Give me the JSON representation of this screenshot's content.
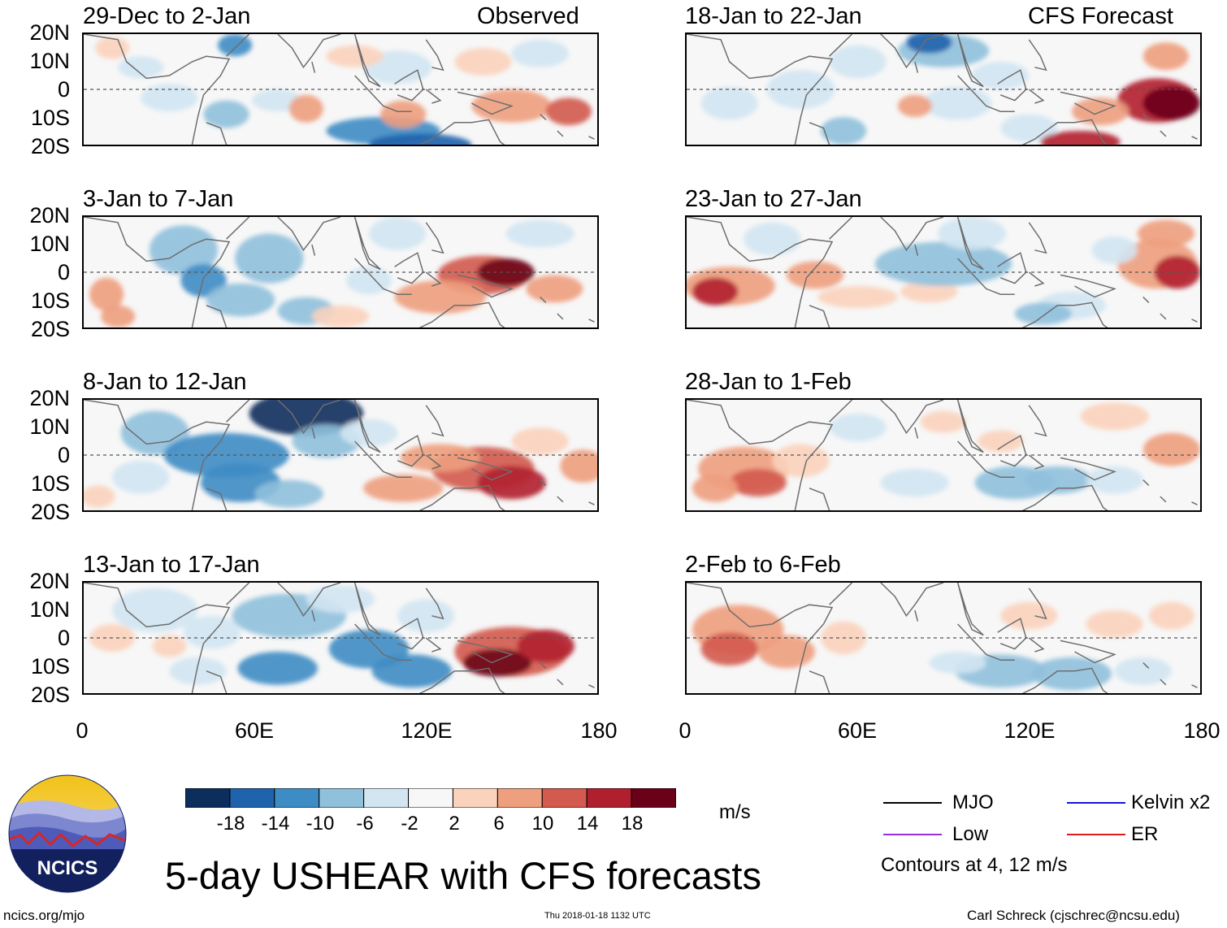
{
  "header": {
    "left_label": "Observed",
    "right_label": "CFS Forecast"
  },
  "panels_left": [
    {
      "title": "29-Dec to 2-Jan"
    },
    {
      "title": "3-Jan to 7-Jan"
    },
    {
      "title": "8-Jan to 12-Jan"
    },
    {
      "title": "13-Jan to 17-Jan"
    }
  ],
  "panels_right": [
    {
      "title": "18-Jan to 22-Jan"
    },
    {
      "title": "23-Jan to 27-Jan"
    },
    {
      "title": "28-Jan to 1-Feb"
    },
    {
      "title": "2-Feb to 6-Feb"
    }
  ],
  "axes": {
    "lat_labels": [
      "20N",
      "10N",
      "0",
      "10S",
      "20S"
    ],
    "lon_labels": [
      "0",
      "60E",
      "120E",
      "180"
    ]
  },
  "colorbar": {
    "unit": "m/s",
    "ticks": [
      "-18",
      "-14",
      "-10",
      "-6",
      "-2",
      "2",
      "6",
      "10",
      "14",
      "18"
    ],
    "colors": [
      "#0b2e5c",
      "#1f63ac",
      "#3e8cc4",
      "#8fc0dc",
      "#d2e6f2",
      "#f7f7f7",
      "#fbd3bd",
      "#ee9f7e",
      "#d35a4e",
      "#b11f2e",
      "#6b0019"
    ]
  },
  "legend": {
    "items": [
      {
        "label": "MJO",
        "color": "#000000"
      },
      {
        "label": "Kelvin x2",
        "color": "#1515d6"
      },
      {
        "label": "Low",
        "color": "#9b30e0"
      },
      {
        "label": "ER",
        "color": "#e31a1c"
      }
    ],
    "note": "Contours at 4, 12 m/s"
  },
  "logo": {
    "text": "NCICS"
  },
  "footer": {
    "title": "5-day USHEAR with CFS forecasts",
    "site": "ncics.org/mjo",
    "timestamp": "Thu 2018-01-18 1132 UTC",
    "author": "Carl Schreck (cjschrec@ncsu.edu)"
  },
  "chart_data": {
    "type": "heatmap",
    "title": "5-day USHEAR with CFS forecasts",
    "variable": "USHEAR",
    "unit": "m/s",
    "xlabel": "",
    "ylabel": "",
    "xlim": [
      0,
      180
    ],
    "ylim": [
      -20,
      20
    ],
    "x_ticks": [
      "0",
      "60E",
      "120E",
      "180"
    ],
    "y_ticks": [
      "20N",
      "10N",
      "0",
      "10S",
      "20S"
    ],
    "contour_levels": [
      4,
      12
    ],
    "observed_periods": [
      "29-Dec to 2-Jan",
      "3-Jan to 7-Jan",
      "8-Jan to 12-Jan",
      "13-Jan to 17-Jan"
    ],
    "forecast_periods": [
      "18-Jan to 22-Jan",
      "23-Jan to 27-Jan",
      "28-Jan to 1-Feb",
      "2-Feb to 6-Feb"
    ],
    "panels": [
      {
        "period": "29-Dec to 2-Jan",
        "blobs": [
          [
            30,
            -3,
            10,
            5,
            -6
          ],
          [
            50,
            -9,
            8,
            5,
            -8
          ],
          [
            53,
            16,
            6,
            4,
            -14
          ],
          [
            68,
            -4,
            9,
            4,
            -6
          ],
          [
            78,
            -7,
            6,
            5,
            8
          ],
          [
            105,
            -15,
            20,
            5,
            -14
          ],
          [
            118,
            -20,
            18,
            4,
            -18
          ],
          [
            112,
            -9,
            8,
            5,
            6
          ],
          [
            150,
            -6,
            14,
            6,
            8
          ],
          [
            170,
            -8,
            8,
            5,
            10
          ],
          [
            110,
            8,
            12,
            6,
            -4
          ],
          [
            95,
            12,
            10,
            4,
            4
          ],
          [
            140,
            10,
            10,
            5,
            4
          ],
          [
            10,
            15,
            6,
            4,
            4
          ],
          [
            20,
            8,
            8,
            4,
            -4
          ],
          [
            160,
            13,
            10,
            5,
            -4
          ]
        ]
      },
      {
        "period": "3-Jan to 7-Jan",
        "blobs": [
          [
            35,
            8,
            12,
            9,
            -10
          ],
          [
            65,
            5,
            12,
            9,
            -8
          ],
          [
            42,
            -3,
            8,
            6,
            -12
          ],
          [
            55,
            -10,
            12,
            6,
            -10
          ],
          [
            78,
            -14,
            10,
            5,
            -8
          ],
          [
            140,
            -1,
            16,
            7,
            12
          ],
          [
            148,
            0,
            10,
            5,
            18
          ],
          [
            125,
            -9,
            16,
            6,
            6
          ],
          [
            165,
            -6,
            10,
            5,
            6
          ],
          [
            8,
            -8,
            6,
            6,
            6
          ],
          [
            12,
            -16,
            6,
            4,
            8
          ],
          [
            100,
            -3,
            8,
            5,
            -4
          ],
          [
            110,
            14,
            10,
            6,
            -4
          ],
          [
            160,
            14,
            12,
            5,
            -4
          ],
          [
            90,
            -16,
            10,
            4,
            4
          ]
        ]
      },
      {
        "period": "8-Jan to 12-Jan",
        "blobs": [
          [
            78,
            15,
            20,
            8,
            -20
          ],
          [
            85,
            5,
            12,
            6,
            -10
          ],
          [
            25,
            8,
            12,
            8,
            -8
          ],
          [
            50,
            0,
            22,
            8,
            -12
          ],
          [
            55,
            -10,
            14,
            7,
            -14
          ],
          [
            72,
            -14,
            12,
            5,
            -10
          ],
          [
            20,
            -8,
            10,
            6,
            -6
          ],
          [
            140,
            -5,
            18,
            8,
            10
          ],
          [
            150,
            -10,
            12,
            6,
            16
          ],
          [
            125,
            -1,
            14,
            5,
            6
          ],
          [
            112,
            -12,
            14,
            5,
            6
          ],
          [
            160,
            5,
            10,
            5,
            4
          ],
          [
            5,
            -15,
            6,
            4,
            4
          ],
          [
            175,
            -4,
            8,
            6,
            6
          ],
          [
            100,
            8,
            10,
            5,
            -4
          ]
        ]
      },
      {
        "period": "13-Jan to 17-Jan",
        "blobs": [
          [
            72,
            8,
            20,
            8,
            -10
          ],
          [
            25,
            10,
            15,
            8,
            -6
          ],
          [
            45,
            2,
            10,
            6,
            -6
          ],
          [
            68,
            -11,
            14,
            6,
            -14
          ],
          [
            100,
            -4,
            14,
            7,
            -12
          ],
          [
            115,
            -12,
            14,
            6,
            -14
          ],
          [
            40,
            -12,
            10,
            5,
            -4
          ],
          [
            150,
            -5,
            20,
            9,
            10
          ],
          [
            145,
            -9,
            12,
            5,
            18
          ],
          [
            162,
            -3,
            10,
            6,
            14
          ],
          [
            120,
            8,
            10,
            6,
            -4
          ],
          [
            10,
            0,
            8,
            5,
            4
          ],
          [
            30,
            -3,
            6,
            4,
            4
          ],
          [
            90,
            14,
            12,
            5,
            -6
          ]
        ]
      },
      {
        "period": "18-Jan to 22-Jan",
        "blobs": [
          [
            90,
            14,
            16,
            6,
            -10
          ],
          [
            85,
            17,
            8,
            4,
            -18
          ],
          [
            60,
            10,
            10,
            6,
            -6
          ],
          [
            40,
            0,
            12,
            7,
            -4
          ],
          [
            55,
            -15,
            8,
            5,
            -10
          ],
          [
            95,
            -5,
            12,
            6,
            -4
          ],
          [
            80,
            -6,
            6,
            4,
            6
          ],
          [
            120,
            -14,
            10,
            5,
            -6
          ],
          [
            138,
            -19,
            14,
            4,
            14
          ],
          [
            165,
            -4,
            14,
            8,
            14
          ],
          [
            170,
            -5,
            10,
            6,
            20
          ],
          [
            145,
            -8,
            10,
            5,
            6
          ],
          [
            15,
            -5,
            10,
            6,
            -4
          ],
          [
            110,
            5,
            10,
            5,
            -4
          ],
          [
            168,
            12,
            8,
            5,
            6
          ]
        ]
      },
      {
        "period": "23-Jan to 27-Jan",
        "blobs": [
          [
            15,
            -5,
            16,
            7,
            8
          ],
          [
            10,
            -7,
            8,
            5,
            14
          ],
          [
            45,
            -1,
            10,
            5,
            6
          ],
          [
            60,
            -9,
            14,
            4,
            4
          ],
          [
            85,
            -7,
            10,
            4,
            4
          ],
          [
            90,
            3,
            24,
            8,
            -8
          ],
          [
            100,
            14,
            12,
            6,
            -6
          ],
          [
            135,
            -12,
            12,
            5,
            -6
          ],
          [
            125,
            -15,
            10,
            4,
            -8
          ],
          [
            165,
            3,
            14,
            9,
            8
          ],
          [
            172,
            0,
            8,
            6,
            16
          ],
          [
            168,
            14,
            10,
            5,
            6
          ],
          [
            30,
            12,
            10,
            6,
            -4
          ],
          [
            150,
            8,
            8,
            5,
            -4
          ]
        ]
      },
      {
        "period": "28-Jan to 1-Feb",
        "blobs": [
          [
            20,
            -5,
            16,
            8,
            8
          ],
          [
            25,
            -10,
            10,
            5,
            10
          ],
          [
            10,
            -12,
            8,
            5,
            6
          ],
          [
            40,
            -2,
            10,
            6,
            4
          ],
          [
            115,
            -10,
            14,
            6,
            -10
          ],
          [
            130,
            -9,
            12,
            5,
            -8
          ],
          [
            150,
            -9,
            10,
            5,
            -6
          ],
          [
            170,
            2,
            10,
            6,
            6
          ],
          [
            150,
            14,
            12,
            5,
            4
          ],
          [
            80,
            -10,
            12,
            5,
            -4
          ],
          [
            60,
            10,
            10,
            5,
            -4
          ],
          [
            110,
            5,
            8,
            4,
            4
          ],
          [
            90,
            12,
            8,
            4,
            4
          ]
        ]
      },
      {
        "period": "2-Feb to 6-Feb",
        "blobs": [
          [
            18,
            3,
            16,
            9,
            6
          ],
          [
            15,
            -4,
            10,
            6,
            10
          ],
          [
            35,
            -5,
            10,
            6,
            6
          ],
          [
            55,
            0,
            8,
            6,
            4
          ],
          [
            110,
            -12,
            16,
            6,
            -8
          ],
          [
            135,
            -13,
            14,
            6,
            -10
          ],
          [
            95,
            -9,
            10,
            4,
            -4
          ],
          [
            160,
            -12,
            10,
            5,
            -4
          ],
          [
            120,
            8,
            10,
            5,
            4
          ],
          [
            150,
            5,
            10,
            5,
            4
          ],
          [
            170,
            8,
            8,
            5,
            4
          ]
        ]
      }
    ]
  }
}
